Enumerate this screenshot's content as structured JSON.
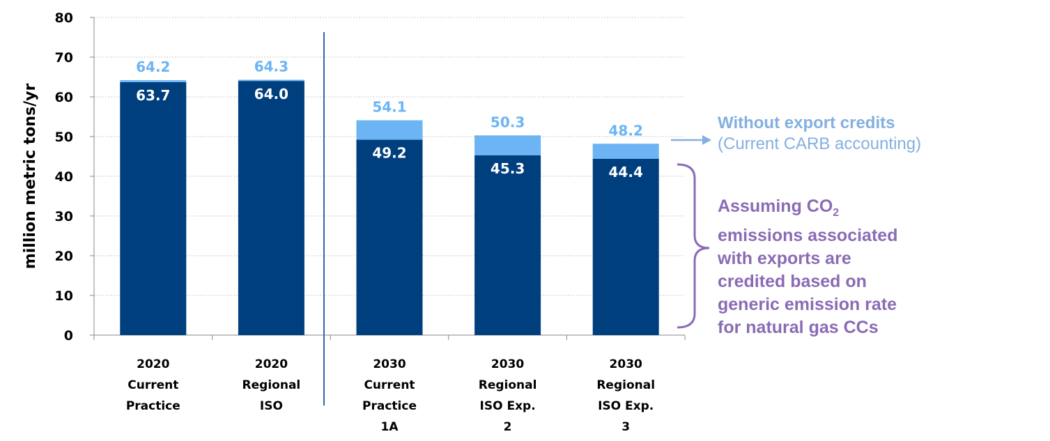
{
  "chart_data": {
    "type": "bar",
    "stacked": true,
    "ylabel": "million metric tons/yr",
    "ylim": [
      0,
      80
    ],
    "yticks": [
      "0",
      "10",
      "20",
      "30",
      "40",
      "50",
      "60",
      "70",
      "80"
    ],
    "grid": true,
    "categories": [
      [
        "2020",
        "Current",
        "Practice"
      ],
      [
        "2020",
        "Regional",
        "ISO"
      ],
      [
        "2030",
        "Current",
        "Practice",
        "1A"
      ],
      [
        "2030",
        "Regional",
        "ISO Exp.",
        "2"
      ],
      [
        "2030",
        "Regional",
        "ISO Exp.",
        "3"
      ]
    ],
    "series": [
      {
        "values": [
          63.7,
          64.0,
          49.2,
          45.3,
          44.4
        ],
        "color": "#003f7d"
      },
      {
        "values": [
          0.5,
          0.3,
          4.9,
          5.0,
          3.8
        ],
        "color": "#6cb4f4"
      }
    ],
    "credited_labels": [
      "63.7",
      "64.0",
      "49.2",
      "45.3",
      "44.4"
    ],
    "total_labels": [
      "64.2",
      "64.3",
      "54.1",
      "50.3",
      "48.2"
    ],
    "totals": [
      64.2,
      64.3,
      54.1,
      50.3,
      48.2
    ],
    "colors": {
      "credited": "#003f7d",
      "export": "#6cb4f4",
      "divider": "#2e6aa8",
      "annotation_without": "#84afe0",
      "annotation_assume": "#8a6bb5"
    }
  },
  "annotations": {
    "without_bold": "Without export credits",
    "without_sub": "(Current CARB accounting)",
    "assume_prefix": "Assuming CO",
    "assume_subscript": "2",
    "assume_lines": [
      "emissions associated",
      "with exports are",
      "credited based on",
      "generic emission rate",
      "for natural gas CCs"
    ]
  }
}
